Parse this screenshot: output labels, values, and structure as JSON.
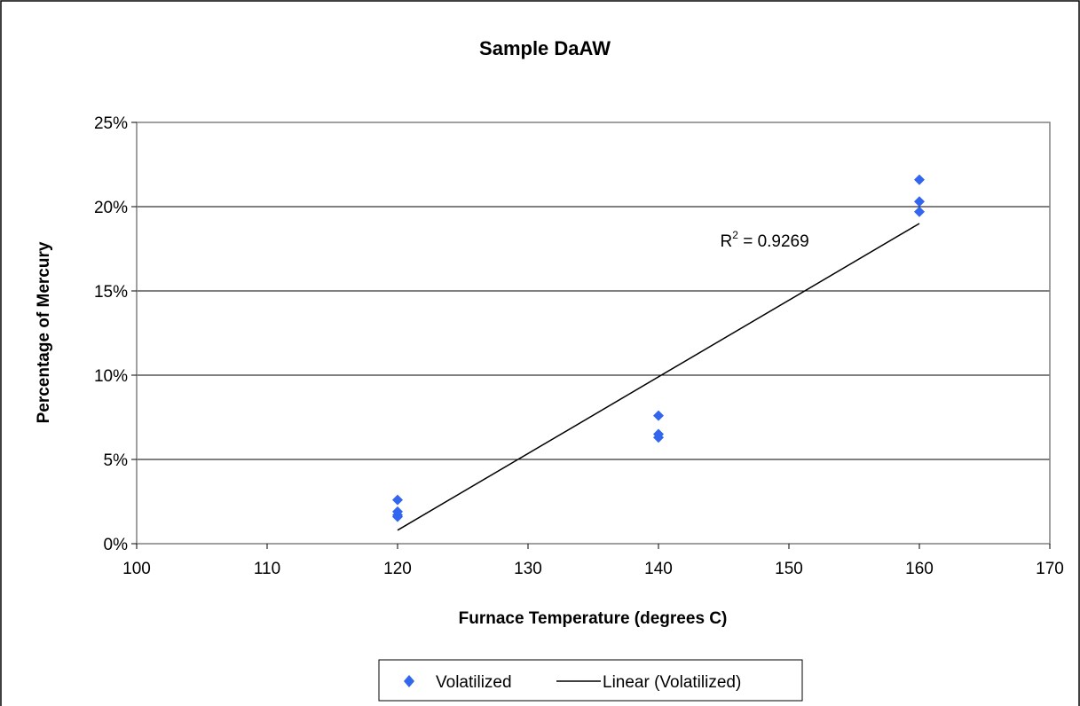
{
  "chart_data": {
    "type": "scatter",
    "title": "Sample DaAW",
    "xlabel": "Furnace Temperature (degrees C)",
    "ylabel": "Percentage of Mercury",
    "xlim": [
      100,
      170
    ],
    "ylim": [
      0,
      0.25
    ],
    "xticks": [
      100,
      110,
      120,
      130,
      140,
      150,
      160,
      170
    ],
    "yticks": [
      0,
      0.05,
      0.1,
      0.15,
      0.2,
      0.25
    ],
    "ytick_labels": [
      "0%",
      "5%",
      "10%",
      "15%",
      "20%",
      "25%"
    ],
    "grid": "horizontal",
    "legend_position": "bottom",
    "series": [
      {
        "name": "Volatilized",
        "marker": "diamond",
        "color": "#3366ee",
        "x": [
          120,
          120,
          120,
          120,
          140,
          140,
          140,
          160,
          160,
          160
        ],
        "y": [
          0.026,
          0.019,
          0.017,
          0.016,
          0.076,
          0.065,
          0.063,
          0.216,
          0.203,
          0.197
        ]
      },
      {
        "name": "Linear (Volatilized)",
        "style": "line",
        "color": "#000000",
        "x": [
          120,
          160
        ],
        "y": [
          0.008,
          0.19
        ]
      }
    ],
    "annotation": {
      "base": "R",
      "sup": "2",
      "rest": " = 0.9269",
      "at": [
        145,
        0.18
      ]
    }
  }
}
